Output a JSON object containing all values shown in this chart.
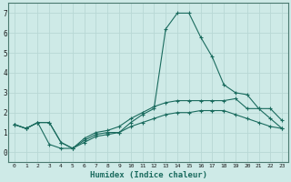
{
  "xlabel": "Humidex (Indice chaleur)",
  "x_ticks": [
    0,
    1,
    2,
    3,
    4,
    5,
    6,
    7,
    8,
    9,
    10,
    11,
    12,
    13,
    14,
    15,
    16,
    17,
    18,
    19,
    20,
    21,
    22,
    23
  ],
  "xlim": [
    -0.5,
    23.5
  ],
  "ylim": [
    -0.5,
    7.5
  ],
  "y_ticks": [
    0,
    1,
    2,
    3,
    4,
    5,
    6,
    7
  ],
  "background_color": "#ceeae7",
  "grid_color": "#b8d8d5",
  "line_color": "#1a6b5e",
  "series1_x": [
    0,
    1,
    2,
    3,
    4,
    5,
    6,
    7,
    8,
    9,
    10,
    11,
    12,
    13,
    14,
    15,
    16,
    17,
    18,
    19,
    20,
    21,
    22,
    23
  ],
  "series1_y": [
    1.4,
    1.2,
    1.5,
    1.5,
    0.5,
    0.2,
    0.6,
    0.9,
    1.0,
    1.0,
    1.5,
    1.9,
    2.2,
    6.2,
    7.0,
    7.0,
    5.8,
    4.8,
    3.4,
    3.0,
    2.9,
    2.2,
    2.2,
    1.6
  ],
  "series2_x": [
    0,
    1,
    2,
    3,
    4,
    5,
    6,
    7,
    8,
    9,
    10,
    11,
    12,
    13,
    14,
    15,
    16,
    17,
    18,
    19,
    20,
    21,
    22,
    23
  ],
  "series2_y": [
    1.4,
    1.2,
    1.5,
    1.5,
    0.5,
    0.2,
    0.7,
    1.0,
    1.1,
    1.3,
    1.7,
    2.0,
    2.3,
    2.5,
    2.6,
    2.6,
    2.6,
    2.6,
    2.6,
    2.7,
    2.2,
    2.2,
    1.7,
    1.2
  ],
  "series3_x": [
    0,
    1,
    2,
    3,
    4,
    5,
    6,
    7,
    8,
    9,
    10,
    11,
    12,
    13,
    14,
    15,
    16,
    17,
    18,
    19,
    20,
    21,
    22,
    23
  ],
  "series3_y": [
    1.4,
    1.2,
    1.5,
    0.4,
    0.2,
    0.2,
    0.5,
    0.8,
    0.9,
    1.0,
    1.3,
    1.5,
    1.7,
    1.9,
    2.0,
    2.0,
    2.1,
    2.1,
    2.1,
    1.9,
    1.7,
    1.5,
    1.3,
    1.2
  ]
}
